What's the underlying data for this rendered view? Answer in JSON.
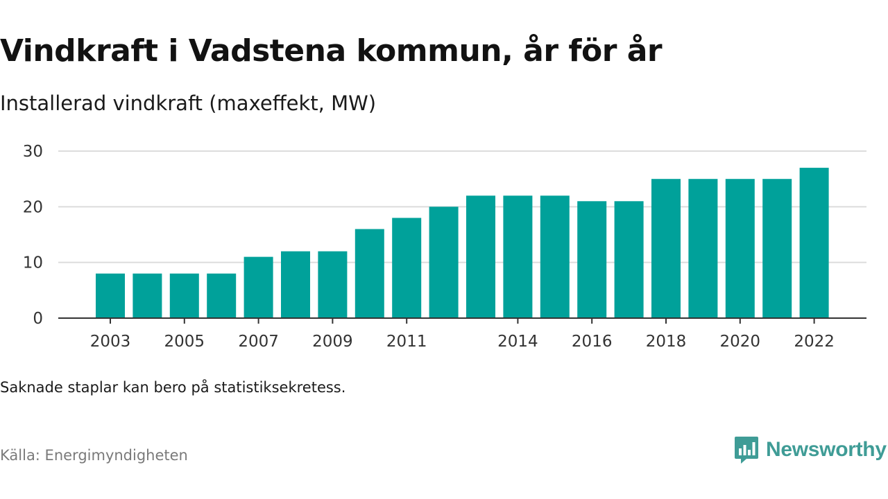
{
  "chart_data": {
    "type": "bar",
    "title": "Vindkraft i Vadstena kommun, år för år",
    "subtitle": "Installerad vindkraft (maxeffekt, MW)",
    "categories": [
      "2003",
      "2004",
      "2005",
      "2006",
      "2007",
      "2008",
      "2009",
      "2010",
      "2011",
      "2012",
      "2013",
      "2014",
      "2015",
      "2016",
      "2017",
      "2018",
      "2019",
      "2020",
      "2021",
      "2022"
    ],
    "values": [
      8,
      8,
      8,
      8,
      11,
      12,
      12,
      16,
      18,
      20,
      22,
      22,
      22,
      21,
      21,
      25,
      25,
      25,
      25,
      27
    ],
    "x_tick_labels": [
      {
        "category": "2003",
        "label": "2003"
      },
      {
        "category": "2005",
        "label": "2005"
      },
      {
        "category": "2007",
        "label": "2007"
      },
      {
        "category": "2009",
        "label": "2009"
      },
      {
        "category": "2011",
        "label": "2011"
      },
      {
        "category": "2014",
        "label": "2014"
      },
      {
        "category": "2016",
        "label": "2016"
      },
      {
        "category": "2018",
        "label": "2018"
      },
      {
        "category": "2020",
        "label": "2020"
      },
      {
        "category": "2022",
        "label": "2022"
      }
    ],
    "y_ticks": [
      0,
      10,
      20,
      30
    ],
    "ylim": [
      0,
      30
    ],
    "xlabel": "",
    "ylabel": "",
    "grid": true,
    "bar_color": "#00a19a"
  },
  "note": "Saknade staplar kan bero på statistiksekretess.",
  "source": "Källa: Energimyndigheten",
  "brand": {
    "name": "Newsworthy",
    "color": "#3f9c96"
  }
}
